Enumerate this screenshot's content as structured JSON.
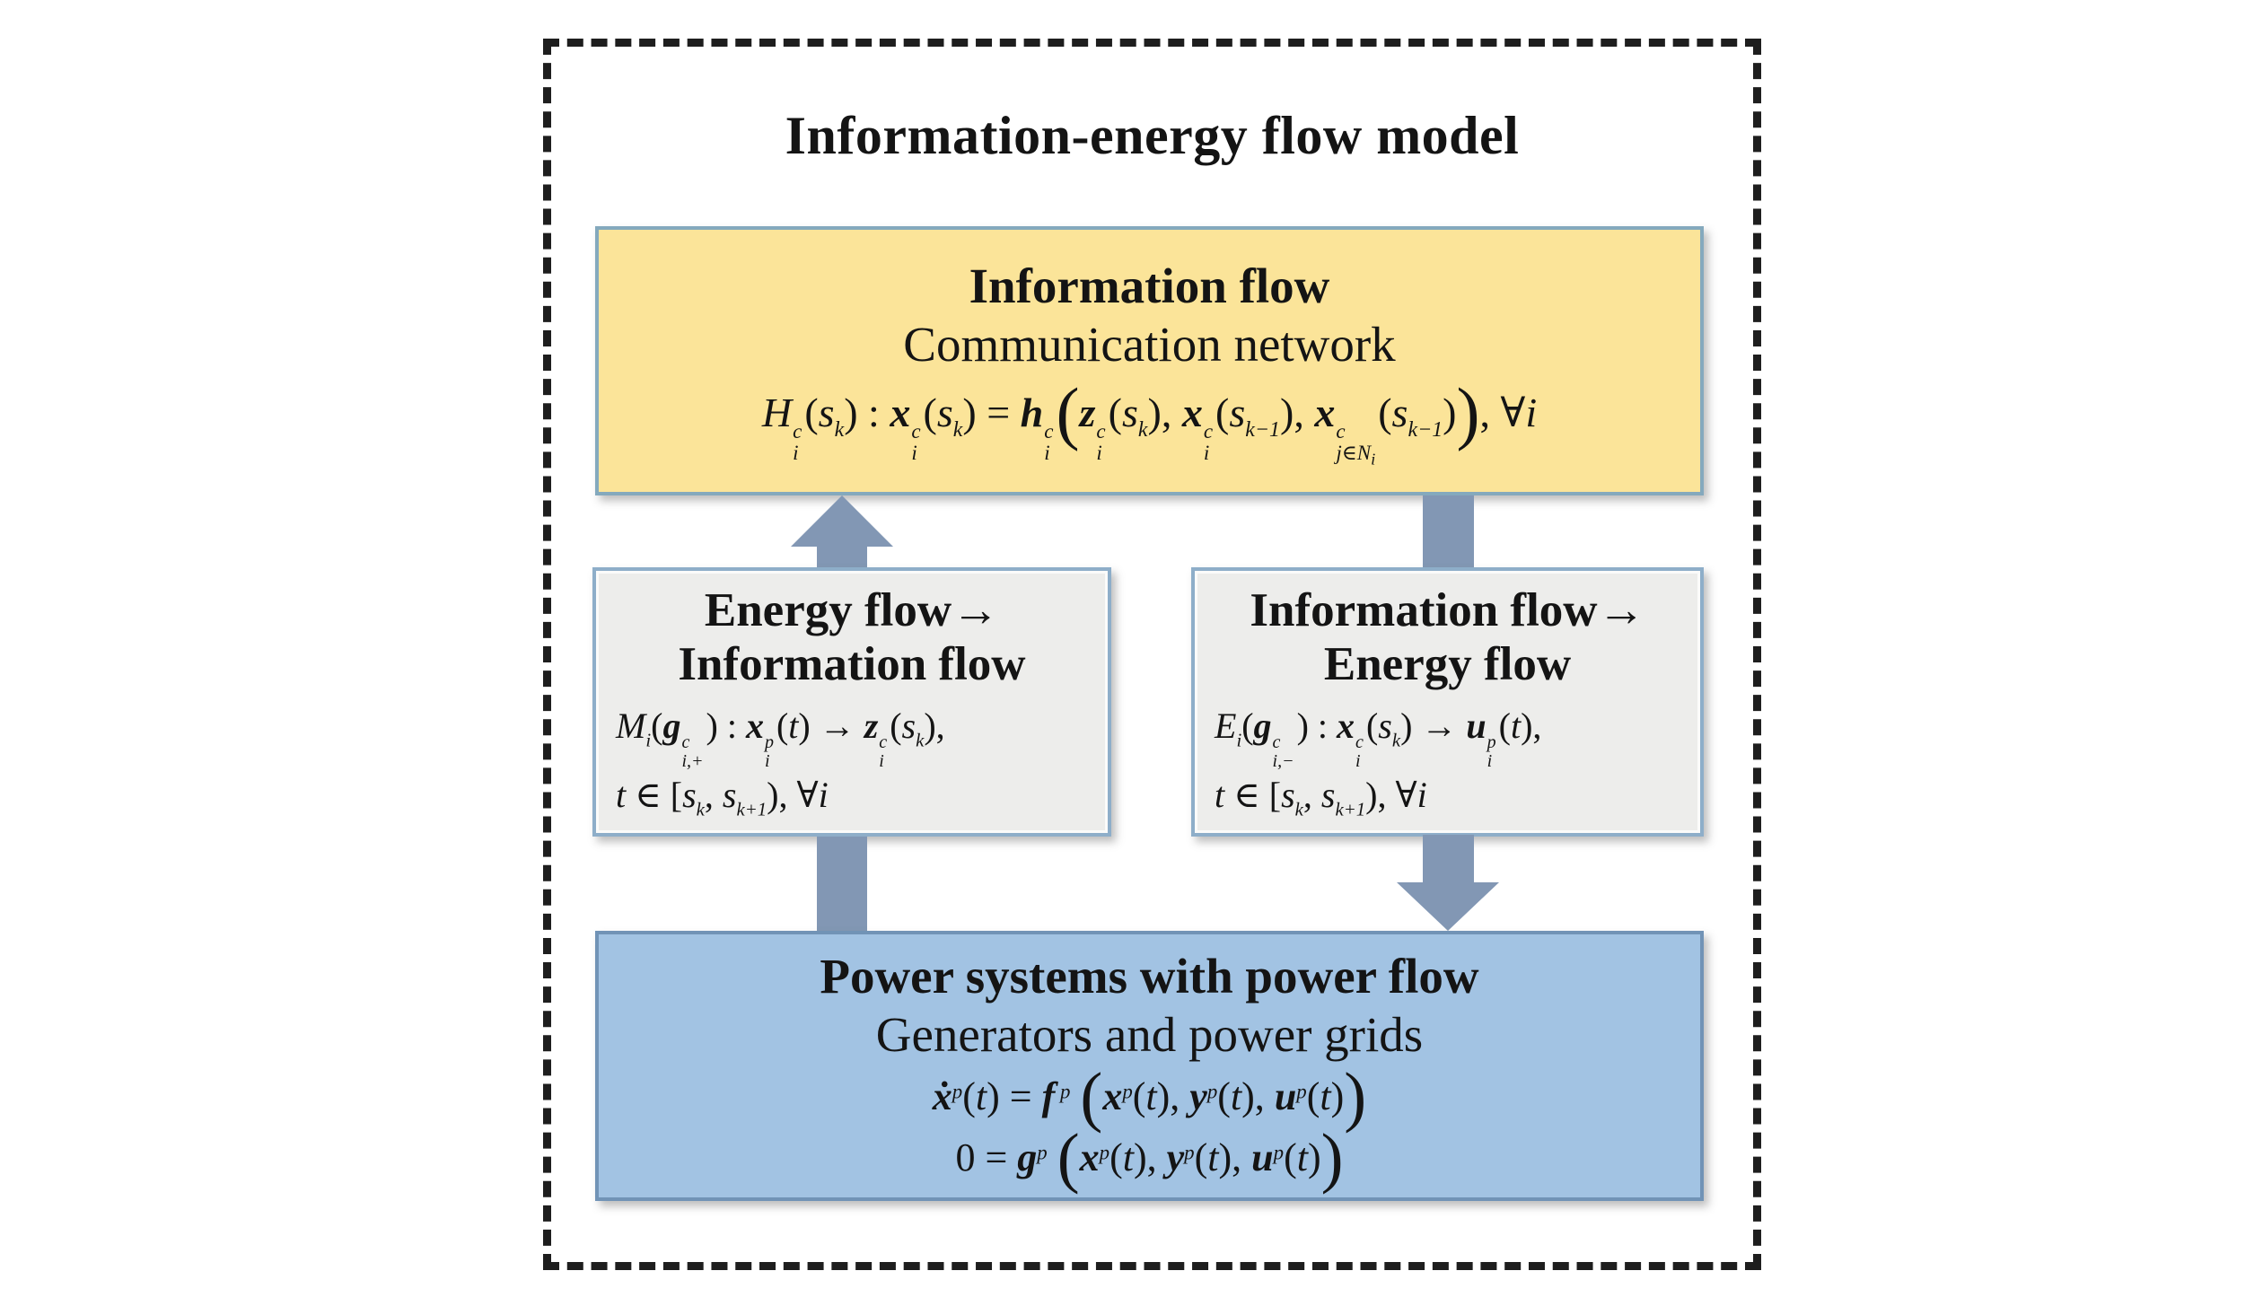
{
  "diagram": {
    "title": "Information-energy flow model",
    "information_flow": {
      "heading": "Information flow",
      "subheading": "Communication network",
      "equation_html": "<i>H</i><span class='ss'><span>c</span><span>i</span></span>(<i>s</i><sub><i>k</i></sub>) : <em>x</em><span class='ss'><span>c</span><span>i</span></span>(<i>s</i><sub><i>k</i></sub>) = <em>h</em><span class='ss'><span>c</span><span>i</span></span><span class='bp'>(</span><em>z</em><span class='ss'><span>c</span><span>i</span></span>(<i>s</i><sub><i>k</i></sub>), <em>x</em><span class='ss'><span>c</span><span>i</span></span>(<i>s</i><sub><i>k</i>−1</sub>), <em>x</em><span class='ss'><span>c</span><span>j∈N<sub>i</sub></span></span>(<i>s</i><sub><i>k</i>−1</sub>)<span class='bp'>)</span>, ∀<i>i</i>"
    },
    "energy_to_information": {
      "heading_line1": "Energy flow→",
      "heading_line2": "Information flow",
      "equation_line1_html": "<i>M</i><sub><i>i</i></sub>(<em>g</em><span class='ss'><span>c</span><span>i,+</span></span>) : <em>x</em><span class='ss'><span>p</span><span>i</span></span>(<i>t</i>) → <em>z</em><span class='ss'><span>c</span><span>i</span></span>(<i>s</i><sub><i>k</i></sub>),",
      "equation_line2_html": "<i>t</i> ∈ [<i>s</i><sub><i>k</i></sub>, <i>s</i><sub><i>k</i>+1</sub>), ∀<i>i</i>"
    },
    "information_to_energy": {
      "heading_line1": "Information flow→",
      "heading_line2": "Energy flow",
      "equation_line1_html": "<i>E</i><sub><i>i</i></sub>(<em>g</em><span class='ss'><span>c</span><span>i,−</span></span>) : <em>x</em><span class='ss'><span>c</span><span>i</span></span>(<i>s</i><sub><i>k</i></sub>) → <em>u</em><span class='ss'><span>p</span><span>i</span></span>(<i>t</i>),",
      "equation_line2_html": "<i>t</i> ∈ [<i>s</i><sub><i>k</i></sub>, <i>s</i><sub><i>k</i>+1</sub>), ∀<i>i</i>"
    },
    "power_systems": {
      "heading": "Power systems with power flow",
      "subheading": "Generators and power grids",
      "equation_line1_html": "<em>ẋ</em><sup><i>p</i></sup>(<i>t</i>) = <em>f</em><sup> <i>p</i></sup> <span class='bp'>(</span><em>x</em><sup><i>p</i></sup>(<i>t</i>), <em>y</em><sup><i>p</i></sup>(<i>t</i>), <em>u</em><sup><i>p</i></sup>(<i>t</i>)<span class='bp'>)</span>",
      "equation_line2_html": "0 = <em>g</em><sup><i>p</i></sup> <span class='bp'>(</span><em>x</em><sup><i>p</i></sup>(<i>t</i>), <em>y</em><sup><i>p</i></sup>(<i>t</i>), <em>u</em><sup><i>p</i></sup>(<i>t</i>)<span class='bp'>)</span>"
    },
    "colors": {
      "background": "#FFFFFF",
      "text": "#141414",
      "frame_border": "#1E1E1E",
      "box_information_fill": "#FBE499",
      "box_information_border": "#84A9BD",
      "box_converter_fill": "#EDEDEB",
      "box_converter_border": "#8EAEC9",
      "box_power_fill": "#A2C3E3",
      "box_power_border": "#7193B6",
      "arrow_fill": "#8297B4"
    }
  }
}
